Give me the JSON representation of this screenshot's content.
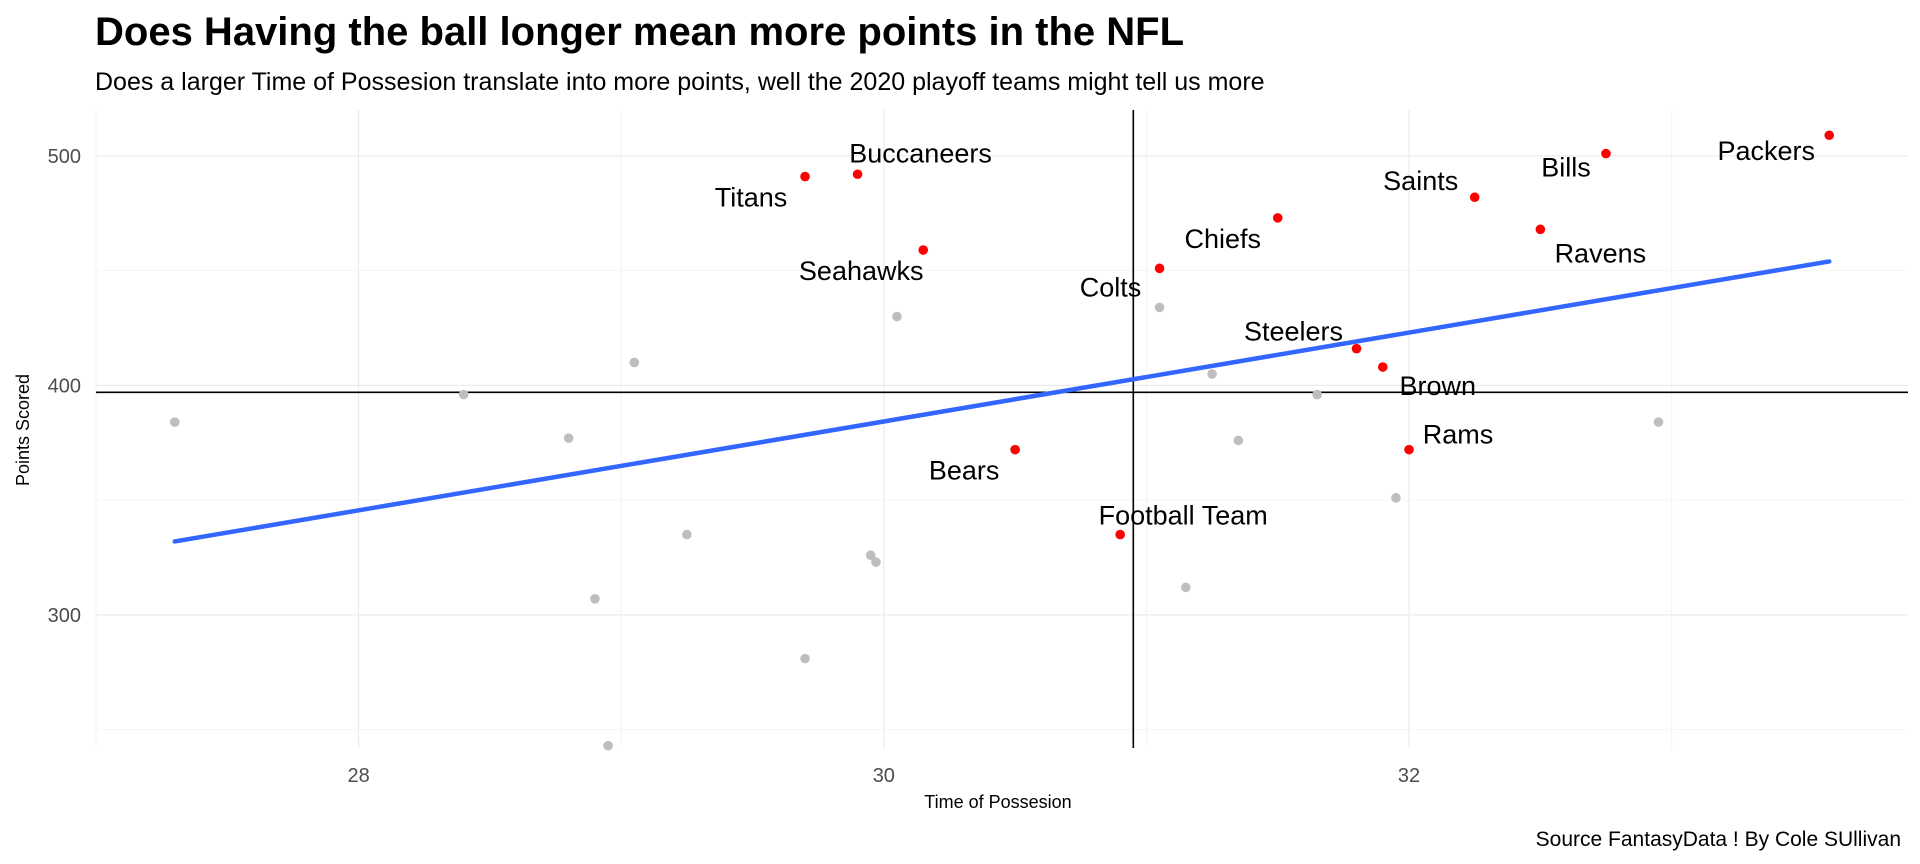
{
  "chart_data": {
    "type": "scatter",
    "title": "Does Having the ball longer mean more points in the NFL",
    "subtitle": "Does a larger Time of Possesion translate into more points, well the 2020 playoff teams might tell us more",
    "caption": "Source FantasyData ! By Cole SUllivan",
    "xlabel": "Time of Possesion",
    "ylabel": "Points Scored",
    "xlim": [
      27.0,
      33.9
    ],
    "ylim": [
      242,
      520
    ],
    "x_ticks": [
      28,
      30,
      32
    ],
    "y_ticks": [
      300,
      400,
      500
    ],
    "grid": true,
    "reference_lines": {
      "x": 30.95,
      "y": 397
    },
    "trend_line": {
      "x": [
        27.3,
        33.6
      ],
      "y": [
        332,
        454
      ],
      "color": "#3366FF"
    },
    "colors": {
      "playoff": "#FF0000",
      "other": "#BEBEBE",
      "reference": "#000000"
    },
    "playoff_teams": [
      {
        "label": "Packers",
        "x": 33.6,
        "y": 509
      },
      {
        "label": "Bills",
        "x": 32.75,
        "y": 501
      },
      {
        "label": "Buccaneers",
        "x": 29.9,
        "y": 492
      },
      {
        "label": "Titans",
        "x": 29.7,
        "y": 491
      },
      {
        "label": "Saints",
        "x": 32.25,
        "y": 482
      },
      {
        "label": "Chiefs",
        "x": 31.5,
        "y": 473
      },
      {
        "label": "Ravens",
        "x": 32.5,
        "y": 468
      },
      {
        "label": "Seahawks",
        "x": 30.15,
        "y": 459
      },
      {
        "label": "Colts",
        "x": 31.05,
        "y": 451
      },
      {
        "label": "Steelers",
        "x": 31.8,
        "y": 416
      },
      {
        "label": "Brown",
        "x": 31.9,
        "y": 408
      },
      {
        "label": "Bears",
        "x": 30.5,
        "y": 372
      },
      {
        "label": "Rams",
        "x": 32.0,
        "y": 372
      },
      {
        "label": "Football Team",
        "x": 30.9,
        "y": 335
      }
    ],
    "other_teams": [
      {
        "x": 27.3,
        "y": 384
      },
      {
        "x": 28.4,
        "y": 396
      },
      {
        "x": 28.8,
        "y": 377
      },
      {
        "x": 28.9,
        "y": 307
      },
      {
        "x": 28.95,
        "y": 243
      },
      {
        "x": 29.05,
        "y": 410
      },
      {
        "x": 29.25,
        "y": 335
      },
      {
        "x": 29.7,
        "y": 281
      },
      {
        "x": 29.95,
        "y": 326
      },
      {
        "x": 29.97,
        "y": 323
      },
      {
        "x": 30.05,
        "y": 430
      },
      {
        "x": 31.05,
        "y": 434
      },
      {
        "x": 31.15,
        "y": 312
      },
      {
        "x": 31.25,
        "y": 405
      },
      {
        "x": 31.35,
        "y": 376
      },
      {
        "x": 31.65,
        "y": 396
      },
      {
        "x": 31.95,
        "y": 351
      },
      {
        "x": 32.95,
        "y": 384
      }
    ]
  }
}
